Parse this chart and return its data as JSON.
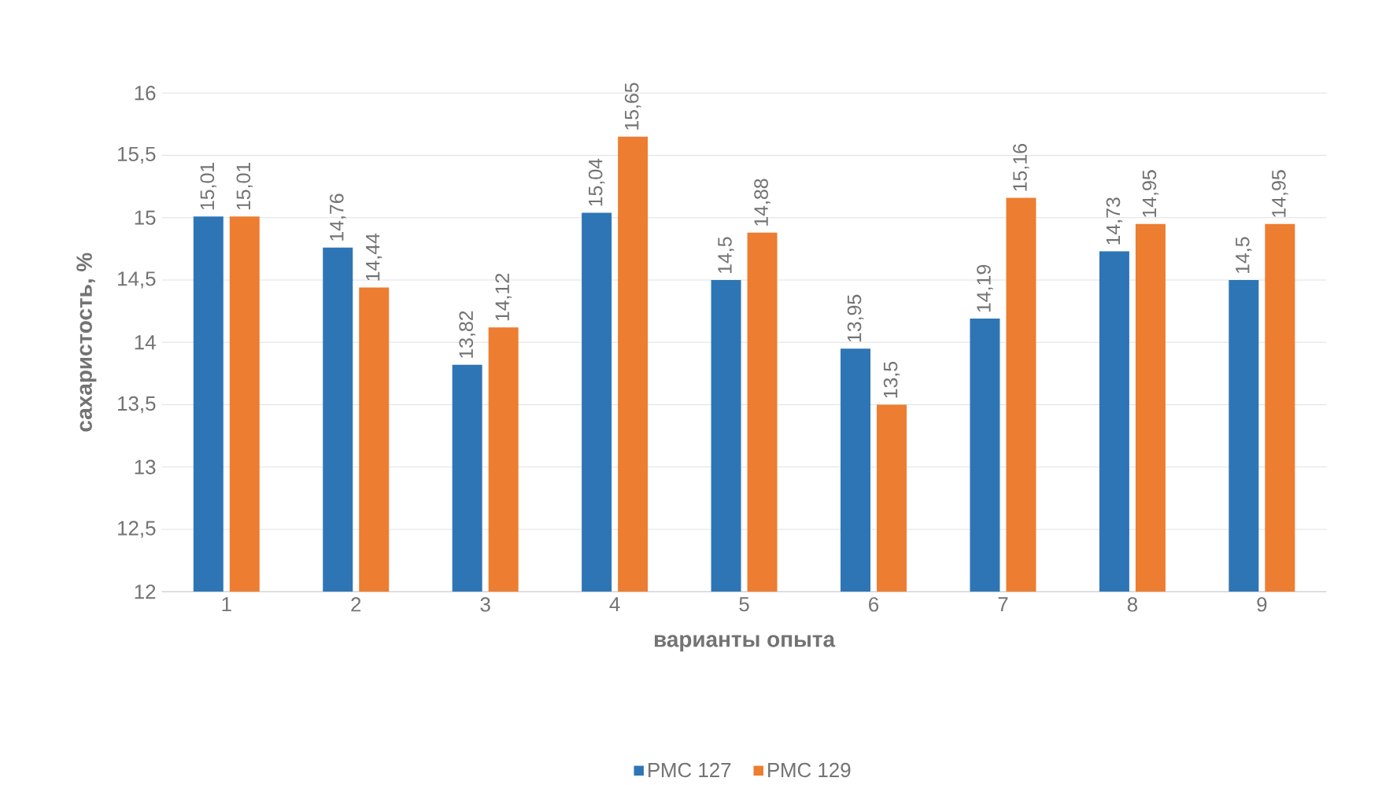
{
  "chart_data": {
    "type": "bar",
    "xlabel": "варианты опыта",
    "ylabel": "сахаристость, %",
    "categories": [
      "1",
      "2",
      "3",
      "4",
      "5",
      "6",
      "7",
      "8",
      "9"
    ],
    "series": [
      {
        "name": "РМС 127",
        "color": "#2e75b6",
        "values": [
          15.01,
          14.76,
          13.82,
          15.04,
          14.5,
          13.95,
          14.19,
          14.73,
          14.5
        ],
        "value_labels": [
          "15,01",
          "14,76",
          "13,82",
          "15,04",
          "14,5",
          "13,95",
          "14,19",
          "14,73",
          "14,5"
        ]
      },
      {
        "name": "РМС 129",
        "color": "#ed7d31",
        "values": [
          15.01,
          14.44,
          14.12,
          15.65,
          14.88,
          13.5,
          15.16,
          14.95,
          14.95
        ],
        "value_labels": [
          "15,01",
          "14,44",
          "14,12",
          "15,65",
          "14,88",
          "13,5",
          "15,16",
          "14,95",
          "14,95"
        ]
      }
    ],
    "ylim": [
      12,
      16
    ],
    "yticks": [
      12,
      {
        "value": 12.5,
        "label": "12,5"
      },
      13,
      {
        "value": 13.5,
        "label": "13,5"
      },
      14,
      {
        "value": 14.5,
        "label": "14,5"
      },
      15,
      {
        "value": 15.5,
        "label": "15,5"
      },
      16
    ],
    "grid": "y",
    "legend": "bottom"
  }
}
